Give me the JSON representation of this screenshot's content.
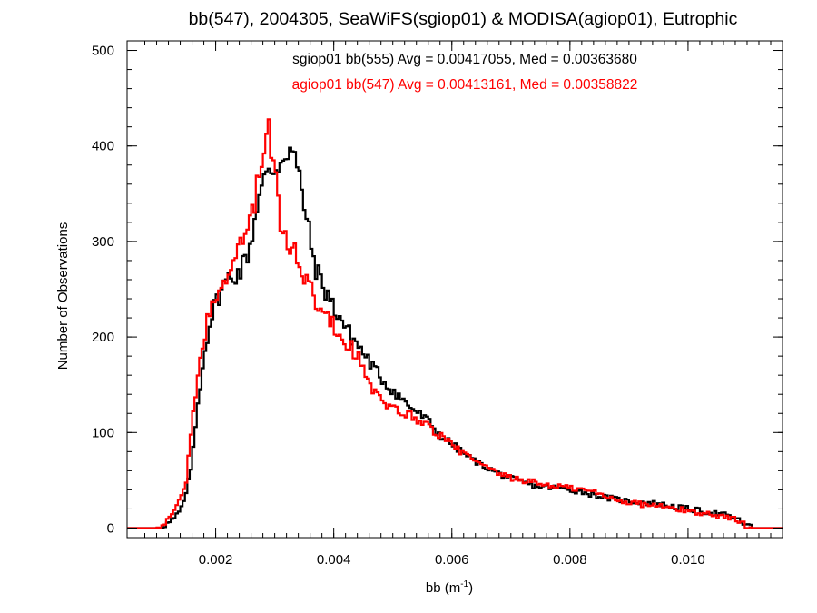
{
  "chart_data": {
    "type": "histogram",
    "title": "bb(547), 2004305, SeaWiFS(sgiop01) & MODISA(agiop01), Eutrophic",
    "xlabel": {
      "base": "bb (m",
      "sup": "-1",
      "close": ")"
    },
    "ylabel": "Number of Observations",
    "xlim": [
      0.0005,
      0.0116
    ],
    "ylim": [
      -10,
      510
    ],
    "bin_width": 4e-05,
    "x_ticks": [
      {
        "value": 0.002,
        "label": "0.002"
      },
      {
        "value": 0.004,
        "label": "0.004"
      },
      {
        "value": 0.006,
        "label": "0.006"
      },
      {
        "value": 0.008,
        "label": "0.008"
      },
      {
        "value": 0.01,
        "label": "0.010"
      }
    ],
    "y_ticks": [
      {
        "value": 0,
        "label": "0"
      },
      {
        "value": 100,
        "label": "100"
      },
      {
        "value": 200,
        "label": "200"
      },
      {
        "value": 300,
        "label": "300"
      },
      {
        "value": 400,
        "label": "400"
      },
      {
        "value": 500,
        "label": "500"
      }
    ],
    "grid": false,
    "legend_position": "top-center",
    "series": [
      {
        "name": "sgiop01",
        "legend_text": "sgiop01 bb(555) Avg = 0.00417055, Med = 0.00363680",
        "color": "#000000",
        "points": [
          [
            0.001,
            0
          ],
          [
            0.0011,
            2
          ],
          [
            0.0012,
            5
          ],
          [
            0.0013,
            10
          ],
          [
            0.0014,
            18
          ],
          [
            0.0015,
            35
          ],
          [
            0.0016,
            70
          ],
          [
            0.0017,
            130
          ],
          [
            0.0018,
            180
          ],
          [
            0.0019,
            215
          ],
          [
            0.002,
            235
          ],
          [
            0.0021,
            250
          ],
          [
            0.0022,
            260
          ],
          [
            0.0023,
            265
          ],
          [
            0.0024,
            268
          ],
          [
            0.0025,
            280
          ],
          [
            0.0026,
            300
          ],
          [
            0.0027,
            340
          ],
          [
            0.0028,
            360
          ],
          [
            0.0029,
            370
          ],
          [
            0.003,
            378
          ],
          [
            0.0031,
            385
          ],
          [
            0.0032,
            398
          ],
          [
            0.0033,
            395
          ],
          [
            0.0034,
            370
          ],
          [
            0.0035,
            340
          ],
          [
            0.0036,
            300
          ],
          [
            0.0037,
            272
          ],
          [
            0.0038,
            255
          ],
          [
            0.0039,
            245
          ],
          [
            0.004,
            230
          ],
          [
            0.0041,
            222
          ],
          [
            0.0042,
            210
          ],
          [
            0.0043,
            200
          ],
          [
            0.0044,
            193
          ],
          [
            0.0045,
            183
          ],
          [
            0.0046,
            175
          ],
          [
            0.0047,
            165
          ],
          [
            0.0048,
            158
          ],
          [
            0.0049,
            150
          ],
          [
            0.005,
            145
          ],
          [
            0.0052,
            132
          ],
          [
            0.0054,
            122
          ],
          [
            0.0056,
            112
          ],
          [
            0.0058,
            97
          ],
          [
            0.006,
            88
          ],
          [
            0.0062,
            78
          ],
          [
            0.0064,
            70
          ],
          [
            0.0066,
            63
          ],
          [
            0.0068,
            57
          ],
          [
            0.007,
            52
          ],
          [
            0.0072,
            48
          ],
          [
            0.0074,
            44
          ],
          [
            0.0076,
            43
          ],
          [
            0.0078,
            42
          ],
          [
            0.008,
            40
          ],
          [
            0.0082,
            38
          ],
          [
            0.0084,
            35
          ],
          [
            0.0086,
            32
          ],
          [
            0.0088,
            30
          ],
          [
            0.009,
            28
          ],
          [
            0.0092,
            27
          ],
          [
            0.0094,
            26
          ],
          [
            0.0096,
            24
          ],
          [
            0.0098,
            22
          ],
          [
            0.01,
            20
          ],
          [
            0.0102,
            18
          ],
          [
            0.0104,
            16
          ],
          [
            0.0106,
            14
          ],
          [
            0.0108,
            10
          ],
          [
            0.011,
            3
          ],
          [
            0.0111,
            0
          ]
        ]
      },
      {
        "name": "agiop01",
        "legend_text": "agiop01 bb(547) Avg = 0.00413161, Med = 0.00358822",
        "color": "#ff0000",
        "points": [
          [
            0.001,
            0
          ],
          [
            0.0011,
            3
          ],
          [
            0.0012,
            8
          ],
          [
            0.0013,
            18
          ],
          [
            0.0014,
            32
          ],
          [
            0.0015,
            48
          ],
          [
            0.0016,
            110
          ],
          [
            0.0017,
            160
          ],
          [
            0.0018,
            200
          ],
          [
            0.0019,
            225
          ],
          [
            0.002,
            240
          ],
          [
            0.0021,
            255
          ],
          [
            0.0022,
            270
          ],
          [
            0.0023,
            280
          ],
          [
            0.0024,
            290
          ],
          [
            0.0025,
            305
          ],
          [
            0.0026,
            330
          ],
          [
            0.0027,
            355
          ],
          [
            0.0028,
            385
          ],
          [
            0.0029,
            420
          ],
          [
            0.003,
            370
          ],
          [
            0.0031,
            310
          ],
          [
            0.0032,
            300
          ],
          [
            0.0033,
            293
          ],
          [
            0.0034,
            285
          ],
          [
            0.0035,
            265
          ],
          [
            0.0036,
            250
          ],
          [
            0.0037,
            240
          ],
          [
            0.0038,
            228
          ],
          [
            0.0039,
            220
          ],
          [
            0.004,
            210
          ],
          [
            0.0041,
            205
          ],
          [
            0.0042,
            195
          ],
          [
            0.0043,
            190
          ],
          [
            0.0044,
            180
          ],
          [
            0.0045,
            165
          ],
          [
            0.0046,
            150
          ],
          [
            0.0047,
            140
          ],
          [
            0.0048,
            135
          ],
          [
            0.0049,
            125
          ],
          [
            0.005,
            125
          ],
          [
            0.0052,
            120
          ],
          [
            0.0054,
            115
          ],
          [
            0.0056,
            107
          ],
          [
            0.0058,
            97
          ],
          [
            0.006,
            87
          ],
          [
            0.0062,
            78
          ],
          [
            0.0064,
            70
          ],
          [
            0.0066,
            62
          ],
          [
            0.0068,
            57
          ],
          [
            0.007,
            52
          ],
          [
            0.0072,
            50
          ],
          [
            0.0074,
            48
          ],
          [
            0.0076,
            45
          ],
          [
            0.0078,
            44
          ],
          [
            0.008,
            42
          ],
          [
            0.0082,
            40
          ],
          [
            0.0084,
            38
          ],
          [
            0.0086,
            33
          ],
          [
            0.0088,
            30
          ],
          [
            0.009,
            27
          ],
          [
            0.0092,
            25
          ],
          [
            0.0094,
            24
          ],
          [
            0.0096,
            22
          ],
          [
            0.0098,
            20
          ],
          [
            0.01,
            18
          ],
          [
            0.0102,
            16
          ],
          [
            0.0104,
            14
          ],
          [
            0.0106,
            12
          ],
          [
            0.0108,
            9
          ],
          [
            0.011,
            2
          ],
          [
            0.0111,
            0
          ]
        ]
      }
    ]
  }
}
